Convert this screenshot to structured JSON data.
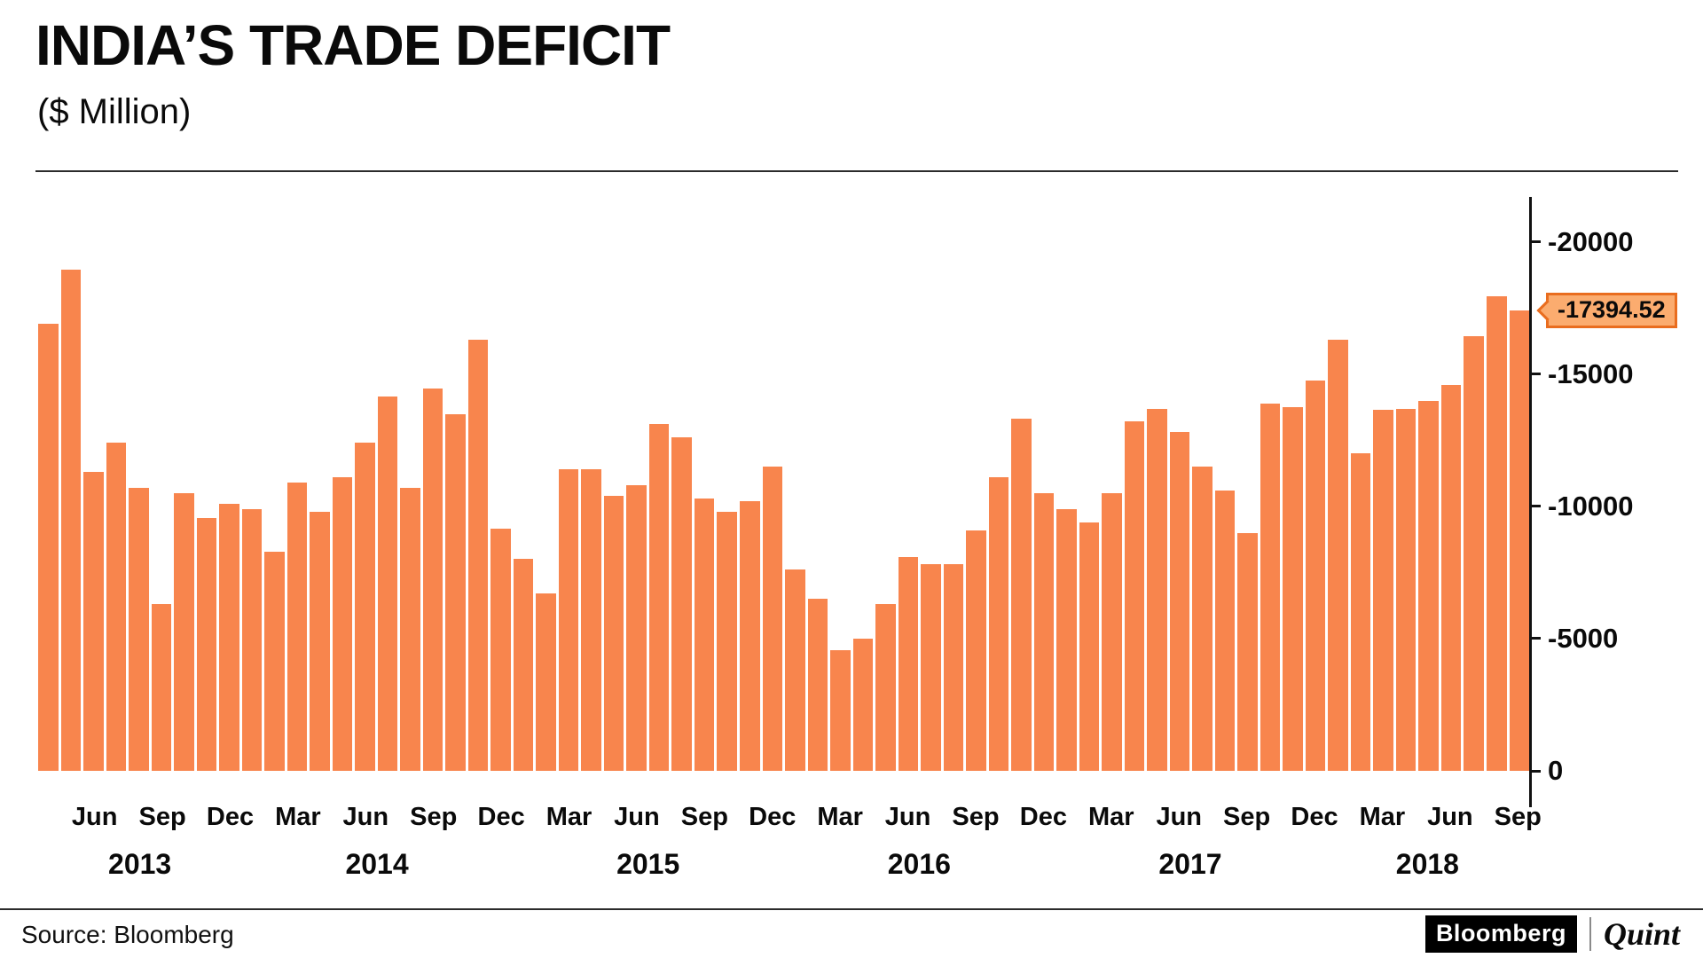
{
  "header": {
    "title": "INDIA’S TRADE DEFICIT",
    "subtitle": "($ Million)"
  },
  "annotation": {
    "label": "-17394.52",
    "value": 17394.52
  },
  "footer": {
    "source": "Source: Bloomberg",
    "brand_left": "Bloomberg",
    "brand_right": "Quint"
  },
  "colors": {
    "bar": "#F8854D",
    "callout_bg": "#FBAC6F",
    "callout_border": "#E96D1F",
    "axis": "#111111"
  },
  "chart_data": {
    "type": "bar",
    "title": "INDIA'S TRADE DEFICIT",
    "unit": "$ Million",
    "note": "Monthly trade deficit magnitudes; axis labelled with negative values, bars drawn upward",
    "ylim": [
      0,
      21700
    ],
    "grid": false,
    "legend": "none",
    "y_ticks": [
      {
        "label": "0",
        "value": 0
      },
      {
        "label": "-5000",
        "value": 5000
      },
      {
        "label": "-10000",
        "value": 10000
      },
      {
        "label": "-15000",
        "value": 15000
      },
      {
        "label": "-20000",
        "value": 20000
      }
    ],
    "x_tick_months": [
      "Jun",
      "Sep",
      "Dec",
      "Mar"
    ],
    "series": [
      {
        "name": "Trade deficit ($ Million)",
        "points": [
          {
            "m": "Apr",
            "y": 2013,
            "v": 16900
          },
          {
            "m": "May",
            "y": 2013,
            "v": 18950
          },
          {
            "m": "Jun",
            "y": 2013,
            "v": 11300
          },
          {
            "m": "Jul",
            "y": 2013,
            "v": 12400
          },
          {
            "m": "Aug",
            "y": 2013,
            "v": 10700
          },
          {
            "m": "Sep",
            "y": 2013,
            "v": 6300
          },
          {
            "m": "Oct",
            "y": 2013,
            "v": 10500
          },
          {
            "m": "Nov",
            "y": 2013,
            "v": 9550
          },
          {
            "m": "Dec",
            "y": 2013,
            "v": 10100
          },
          {
            "m": "Jan",
            "y": 2014,
            "v": 9900
          },
          {
            "m": "Feb",
            "y": 2014,
            "v": 8300
          },
          {
            "m": "Mar",
            "y": 2014,
            "v": 10900
          },
          {
            "m": "Apr",
            "y": 2014,
            "v": 9800
          },
          {
            "m": "May",
            "y": 2014,
            "v": 11100
          },
          {
            "m": "Jun",
            "y": 2014,
            "v": 12400
          },
          {
            "m": "Jul",
            "y": 2014,
            "v": 14150
          },
          {
            "m": "Aug",
            "y": 2014,
            "v": 10700
          },
          {
            "m": "Sep",
            "y": 2014,
            "v": 14450
          },
          {
            "m": "Oct",
            "y": 2014,
            "v": 13500
          },
          {
            "m": "Nov",
            "y": 2014,
            "v": 16300
          },
          {
            "m": "Dec",
            "y": 2014,
            "v": 9150
          },
          {
            "m": "Jan",
            "y": 2015,
            "v": 8000
          },
          {
            "m": "Feb",
            "y": 2015,
            "v": 6700
          },
          {
            "m": "Mar",
            "y": 2015,
            "v": 11400
          },
          {
            "m": "Apr",
            "y": 2015,
            "v": 11400
          },
          {
            "m": "May",
            "y": 2015,
            "v": 10400
          },
          {
            "m": "Jun",
            "y": 2015,
            "v": 10800
          },
          {
            "m": "Jul",
            "y": 2015,
            "v": 13100
          },
          {
            "m": "Aug",
            "y": 2015,
            "v": 12600
          },
          {
            "m": "Sep",
            "y": 2015,
            "v": 10300
          },
          {
            "m": "Oct",
            "y": 2015,
            "v": 9800
          },
          {
            "m": "Nov",
            "y": 2015,
            "v": 10200
          },
          {
            "m": "Dec",
            "y": 2015,
            "v": 11500
          },
          {
            "m": "Jan",
            "y": 2016,
            "v": 7600
          },
          {
            "m": "Feb",
            "y": 2016,
            "v": 6500
          },
          {
            "m": "Mar",
            "y": 2016,
            "v": 4550
          },
          {
            "m": "Apr",
            "y": 2016,
            "v": 5000
          },
          {
            "m": "May",
            "y": 2016,
            "v": 6300
          },
          {
            "m": "Jun",
            "y": 2016,
            "v": 8100
          },
          {
            "m": "Jul",
            "y": 2016,
            "v": 7800
          },
          {
            "m": "Aug",
            "y": 2016,
            "v": 7800
          },
          {
            "m": "Sep",
            "y": 2016,
            "v": 9100
          },
          {
            "m": "Oct",
            "y": 2016,
            "v": 11100
          },
          {
            "m": "Nov",
            "y": 2016,
            "v": 13300
          },
          {
            "m": "Dec",
            "y": 2016,
            "v": 10500
          },
          {
            "m": "Jan",
            "y": 2017,
            "v": 9900
          },
          {
            "m": "Feb",
            "y": 2017,
            "v": 9400
          },
          {
            "m": "Mar",
            "y": 2017,
            "v": 10500
          },
          {
            "m": "Apr",
            "y": 2017,
            "v": 13200
          },
          {
            "m": "May",
            "y": 2017,
            "v": 13700
          },
          {
            "m": "Jun",
            "y": 2017,
            "v": 12800
          },
          {
            "m": "Jul",
            "y": 2017,
            "v": 11500
          },
          {
            "m": "Aug",
            "y": 2017,
            "v": 10600
          },
          {
            "m": "Sep",
            "y": 2017,
            "v": 9000
          },
          {
            "m": "Oct",
            "y": 2017,
            "v": 13900
          },
          {
            "m": "Nov",
            "y": 2017,
            "v": 13750
          },
          {
            "m": "Dec",
            "y": 2017,
            "v": 14750
          },
          {
            "m": "Jan",
            "y": 2018,
            "v": 16300
          },
          {
            "m": "Feb",
            "y": 2018,
            "v": 12000
          },
          {
            "m": "Mar",
            "y": 2018,
            "v": 13650
          },
          {
            "m": "Apr",
            "y": 2018,
            "v": 13700
          },
          {
            "m": "May",
            "y": 2018,
            "v": 14000
          },
          {
            "m": "Jun",
            "y": 2018,
            "v": 14600
          },
          {
            "m": "Jul",
            "y": 2018,
            "v": 16450
          },
          {
            "m": "Aug",
            "y": 2018,
            "v": 17950
          },
          {
            "m": "Sep",
            "y": 2018,
            "v": 17394.52
          }
        ]
      }
    ]
  }
}
